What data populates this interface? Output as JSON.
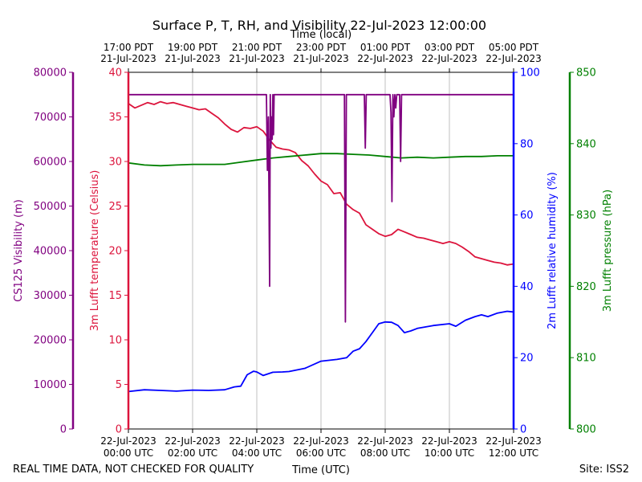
{
  "chart_data": {
    "type": "line",
    "title": "Surface P, T, RH, and Visibility 22-Jul-2023 12:00:00",
    "top_axis": {
      "label": "Time (local)",
      "ticks": [
        {
          "line1": "17:00 PDT",
          "line2": "21-Jul-2023"
        },
        {
          "line1": "19:00 PDT",
          "line2": "21-Jul-2023"
        },
        {
          "line1": "21:00 PDT",
          "line2": "21-Jul-2023"
        },
        {
          "line1": "23:00 PDT",
          "line2": "21-Jul-2023"
        },
        {
          "line1": "01:00 PDT",
          "line2": "22-Jul-2023"
        },
        {
          "line1": "03:00 PDT",
          "line2": "22-Jul-2023"
        },
        {
          "line1": "05:00 PDT",
          "line2": "22-Jul-2023"
        }
      ]
    },
    "bottom_axis": {
      "label": "Time (UTC)",
      "range_hours": [
        0,
        12
      ],
      "ticks": [
        {
          "line1": "22-Jul-2023",
          "line2": "00:00 UTC"
        },
        {
          "line1": "22-Jul-2023",
          "line2": "02:00 UTC"
        },
        {
          "line1": "22-Jul-2023",
          "line2": "04:00 UTC"
        },
        {
          "line1": "22-Jul-2023",
          "line2": "06:00 UTC"
        },
        {
          "line1": "22-Jul-2023",
          "line2": "08:00 UTC"
        },
        {
          "line1": "22-Jul-2023",
          "line2": "10:00 UTC"
        },
        {
          "line1": "22-Jul-2023",
          "line2": "12:00 UTC"
        }
      ]
    },
    "axes": {
      "visibility": {
        "label": "CS125 Visibility (m)",
        "ylim": [
          0,
          80000
        ],
        "ticks": [
          0,
          10000,
          20000,
          30000,
          40000,
          50000,
          60000,
          70000,
          80000
        ],
        "color": "#800080"
      },
      "temperature": {
        "label": "3m Lufft temperature (Celsius)",
        "ylim": [
          0,
          40
        ],
        "ticks": [
          0,
          5,
          10,
          15,
          20,
          25,
          30,
          35,
          40
        ],
        "color": "#dc143c"
      },
      "humidity": {
        "label": "2m Lufft relative humidity (%)",
        "ylim": [
          0,
          100
        ],
        "ticks": [
          0,
          20,
          40,
          60,
          80,
          100
        ],
        "color": "#0000ff"
      },
      "pressure": {
        "label": "3m Lufft pressure (hPa)",
        "ylim": [
          800,
          850
        ],
        "ticks": [
          800,
          810,
          820,
          830,
          840,
          850
        ],
        "color": "#008000"
      }
    },
    "series": [
      {
        "name": "3m Lufft temperature (Celsius)",
        "axis": "temperature",
        "color": "#dc143c",
        "x": [
          0,
          0.2,
          0.4,
          0.6,
          0.8,
          1.0,
          1.2,
          1.4,
          1.6,
          1.8,
          2.0,
          2.2,
          2.4,
          2.6,
          2.8,
          3.0,
          3.2,
          3.4,
          3.6,
          3.8,
          4.0,
          4.2,
          4.4,
          4.6,
          4.8,
          5.0,
          5.2,
          5.4,
          5.6,
          5.8,
          6.0,
          6.2,
          6.4,
          6.6,
          6.8,
          7.0,
          7.2,
          7.4,
          7.6,
          7.8,
          8.0,
          8.2,
          8.4,
          8.6,
          8.8,
          9.0,
          9.2,
          9.4,
          9.6,
          9.8,
          10.0,
          10.2,
          10.4,
          10.6,
          10.8,
          11.0,
          11.2,
          11.4,
          11.6,
          11.8,
          12.0
        ],
        "values": [
          36.5,
          36.0,
          36.3,
          36.6,
          36.4,
          36.7,
          36.5,
          36.6,
          36.4,
          36.2,
          36.0,
          35.8,
          35.9,
          35.4,
          34.9,
          34.2,
          33.6,
          33.3,
          33.8,
          33.7,
          33.9,
          33.4,
          32.4,
          31.6,
          31.4,
          31.3,
          31.0,
          30.1,
          29.5,
          28.6,
          27.8,
          27.4,
          26.4,
          26.5,
          25.2,
          24.6,
          24.2,
          22.9,
          22.4,
          21.9,
          21.6,
          21.8,
          22.4,
          22.1,
          21.8,
          21.5,
          21.4,
          21.2,
          21.0,
          20.8,
          21.0,
          20.8,
          20.4,
          19.9,
          19.3,
          19.1,
          18.9,
          18.7,
          18.6,
          18.4,
          18.5
        ]
      },
      {
        "name": "2m Lufft relative humidity (%)",
        "axis": "humidity",
        "color": "#0000ff",
        "x": [
          0,
          0.5,
          1.0,
          1.5,
          2.0,
          2.5,
          3.0,
          3.3,
          3.5,
          3.7,
          3.9,
          4.0,
          4.2,
          4.5,
          4.8,
          5.0,
          5.5,
          6.0,
          6.5,
          6.8,
          7.0,
          7.2,
          7.4,
          7.6,
          7.8,
          8.0,
          8.2,
          8.4,
          8.6,
          8.8,
          9.0,
          9.5,
          10.0,
          10.2,
          10.5,
          10.8,
          11.0,
          11.2,
          11.5,
          11.8,
          12.0
        ],
        "values": [
          10.5,
          11.0,
          10.8,
          10.6,
          10.9,
          10.8,
          11.0,
          11.8,
          12.0,
          15.2,
          16.2,
          16.0,
          15.0,
          15.9,
          16.0,
          16.1,
          17.0,
          19.0,
          19.5,
          20.0,
          21.8,
          22.5,
          24.5,
          27.0,
          29.5,
          30.0,
          29.9,
          29.0,
          27.0,
          27.5,
          28.2,
          29.0,
          29.5,
          28.8,
          30.5,
          31.5,
          32.0,
          31.5,
          32.5,
          33.0,
          32.8
        ]
      },
      {
        "name": "3m Lufft pressure (hPa)",
        "axis": "pressure",
        "color": "#008000",
        "x": [
          0,
          0.5,
          1.0,
          1.5,
          2.0,
          2.5,
          3.0,
          3.5,
          4.0,
          4.5,
          5.0,
          5.5,
          6.0,
          6.5,
          7.0,
          7.5,
          8.0,
          8.5,
          9.0,
          9.5,
          10.0,
          10.5,
          11.0,
          11.5,
          12.0
        ],
        "values": [
          837.3,
          837.0,
          836.9,
          837.0,
          837.1,
          837.1,
          837.1,
          837.4,
          837.7,
          838.0,
          838.2,
          838.4,
          838.6,
          838.6,
          838.5,
          838.4,
          838.2,
          838.0,
          838.1,
          838.0,
          838.1,
          838.2,
          838.2,
          838.3,
          838.3
        ]
      },
      {
        "name": "CS125 Visibility (m)",
        "axis": "visibility",
        "color": "#800080",
        "x": [
          0,
          4.3,
          4.33,
          4.36,
          4.4,
          4.42,
          4.44,
          4.46,
          4.48,
          4.5,
          4.52,
          4.54,
          4.56,
          4.58,
          4.6,
          6.7,
          6.73,
          6.76,
          6.79,
          6.82,
          7.32,
          7.35,
          7.38,
          7.41,
          7.44,
          8.15,
          8.18,
          8.21,
          8.24,
          8.27,
          8.3,
          8.33,
          8.36,
          8.39,
          8.42,
          8.45,
          8.48,
          8.51,
          8.54,
          8.57,
          8.6,
          12.0
        ],
        "values": [
          75000,
          75000,
          58000,
          70000,
          32000,
          75000,
          63000,
          70000,
          65000,
          75000,
          66000,
          75000,
          75000,
          75000,
          75000,
          75000,
          75000,
          24000,
          75000,
          75000,
          75000,
          75000,
          63000,
          75000,
          75000,
          75000,
          71000,
          51000,
          75000,
          70000,
          75000,
          72000,
          75000,
          75000,
          75000,
          75000,
          60000,
          75000,
          75000,
          75000,
          75000,
          75000
        ]
      }
    ],
    "grid": {
      "x": true,
      "y": false
    },
    "legend": "none"
  },
  "footer": {
    "left_note": "REAL TIME DATA, NOT CHECKED FOR QUALITY",
    "site": "Site: ISS2"
  }
}
